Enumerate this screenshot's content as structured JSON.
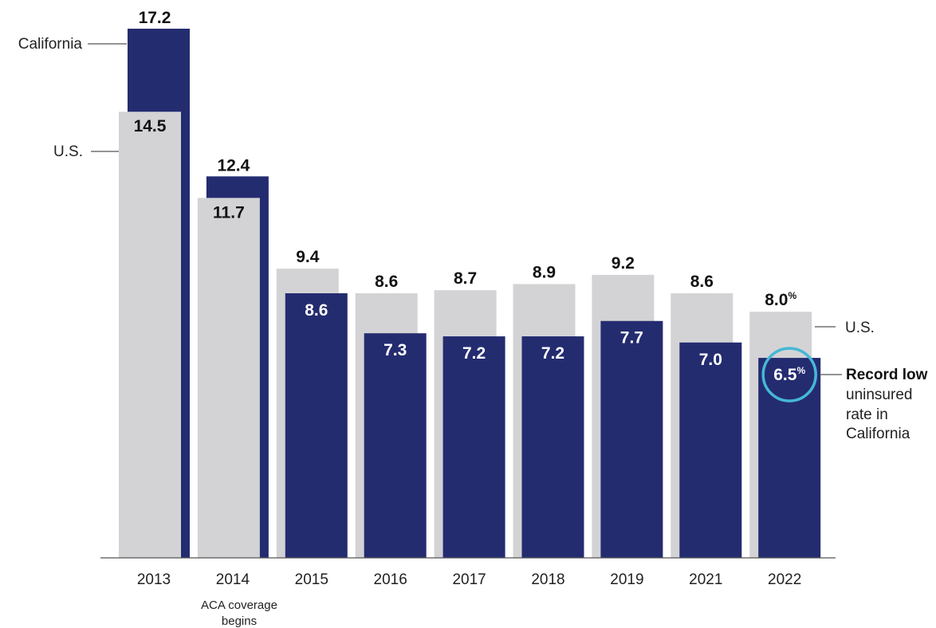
{
  "chart_data": {
    "type": "bar",
    "categories": [
      "2013",
      "2014",
      "2015",
      "2016",
      "2017",
      "2018",
      "2019",
      "2021",
      "2022"
    ],
    "series": [
      {
        "name": "U.S.",
        "values": [
          14.5,
          11.7,
          9.4,
          8.6,
          8.7,
          8.9,
          9.2,
          8.6,
          8.0
        ]
      },
      {
        "name": "California",
        "values": [
          17.2,
          12.4,
          8.6,
          7.3,
          7.2,
          7.2,
          7.7,
          7.0,
          6.5
        ]
      }
    ],
    "labels": {
      "us": [
        "14.5",
        "11.7",
        "9.4",
        "8.6",
        "8.7",
        "8.9",
        "9.2",
        "8.6",
        "8.0"
      ],
      "ca": [
        "17.2",
        "12.4",
        "8.6",
        "7.3",
        "7.2",
        "7.2",
        "7.7",
        "7.0",
        "6.5"
      ]
    },
    "percent_sign": "%",
    "ylim": [
      0,
      17.2
    ],
    "grid": false,
    "colors": {
      "us": "#d3d3d5",
      "ca": "#242c70",
      "highlight": "#45b8d6",
      "axis": "#555555"
    },
    "annotations": {
      "ca_left": "California",
      "us_left": "U.S.",
      "us_right": "U.S.",
      "record_title": "Record low",
      "record_lines": [
        "uninsured",
        "rate in",
        "California"
      ],
      "aca_note_lines": [
        "ACA coverage",
        "begins"
      ]
    }
  }
}
